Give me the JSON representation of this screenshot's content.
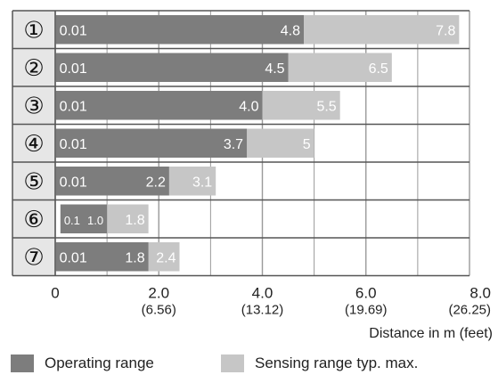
{
  "chart_data": {
    "type": "bar",
    "orientation": "horizontal",
    "stacked_ranges": true,
    "categories": [
      "①",
      "②",
      "③",
      "④",
      "⑤",
      "⑥",
      "⑦"
    ],
    "series": [
      {
        "name": "Operating range",
        "start": [
          0.01,
          0.01,
          0.01,
          0.01,
          0.01,
          0.1,
          0.01
        ],
        "end": [
          4.8,
          4.5,
          4.0,
          3.7,
          2.2,
          1.0,
          1.8
        ],
        "start_labels": [
          "0.01",
          "0.01",
          "0.01",
          "0.01",
          "0.01",
          "0.1",
          "0.01"
        ],
        "end_labels": [
          "4.8",
          "4.5",
          "4.0",
          "3.7",
          "2.2",
          "1.0",
          "1.8"
        ]
      },
      {
        "name": "Sensing range typ. max.",
        "start": [
          4.8,
          4.5,
          4.0,
          3.7,
          2.2,
          1.0,
          1.8
        ],
        "end": [
          7.8,
          6.5,
          5.5,
          5,
          3.1,
          1.8,
          2.4
        ],
        "end_labels": [
          "7.8",
          "6.5",
          "5.5",
          "5",
          "3.1",
          "1.8",
          "2.4"
        ]
      }
    ],
    "xlim": [
      0,
      8
    ],
    "xticks": [
      {
        "value": 0,
        "label": "0",
        "sublabel": ""
      },
      {
        "value": 2,
        "label": "2.0",
        "sublabel": "(6.56)"
      },
      {
        "value": 4,
        "label": "4.0",
        "sublabel": "(13.12)"
      },
      {
        "value": 6,
        "label": "6.0",
        "sublabel": "(19.69)"
      },
      {
        "value": 8,
        "label": "8.0",
        "sublabel": "(26.25)"
      }
    ],
    "xgrid_minor_step": 1,
    "xlabel": "Distance in m (feet)",
    "legend": {
      "position": "bottom",
      "entries": [
        "Operating range",
        "Sensing range typ. max."
      ]
    },
    "colors": {
      "operating": "#7d7d7d",
      "sensing": "#c6c6c6",
      "row_label_bg": "#e6e6e6",
      "grid": "#9a9a9a",
      "frame": "#555555"
    }
  }
}
